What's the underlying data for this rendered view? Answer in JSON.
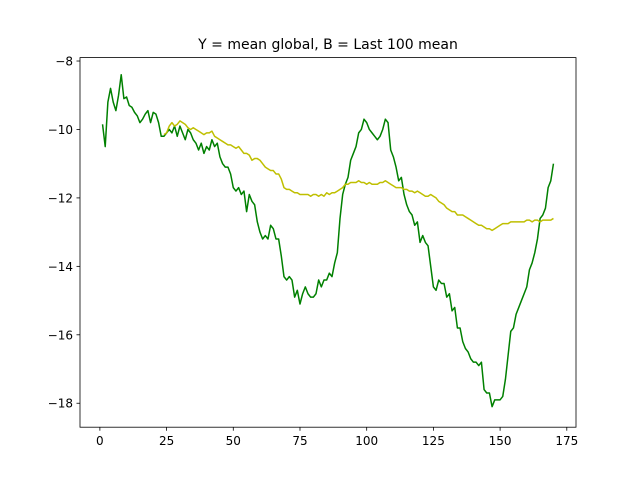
{
  "chart_data": {
    "type": "line",
    "title": "Y = mean global, B = Last 100 mean",
    "x": [
      1,
      2,
      3,
      4,
      5,
      6,
      7,
      8,
      9,
      10,
      11,
      12,
      13,
      14,
      15,
      16,
      17,
      18,
      19,
      20,
      21,
      22,
      23,
      24,
      25,
      26,
      27,
      28,
      29,
      30,
      31,
      32,
      33,
      34,
      35,
      36,
      37,
      38,
      39,
      40,
      41,
      42,
      43,
      44,
      45,
      46,
      47,
      48,
      49,
      50,
      51,
      52,
      53,
      54,
      55,
      56,
      57,
      58,
      59,
      60,
      61,
      62,
      63,
      64,
      65,
      66,
      67,
      68,
      69,
      70,
      71,
      72,
      73,
      74,
      75,
      76,
      77,
      78,
      79,
      80,
      81,
      82,
      83,
      84,
      85,
      86,
      87,
      88,
      89,
      90,
      91,
      92,
      93,
      94,
      95,
      96,
      97,
      98,
      99,
      100,
      101,
      102,
      103,
      104,
      105,
      106,
      107,
      108,
      109,
      110,
      111,
      112,
      113,
      114,
      115,
      116,
      117,
      118,
      119,
      120,
      121,
      122,
      123,
      124,
      125,
      126,
      127,
      128,
      129,
      130,
      131,
      132,
      133,
      134,
      135,
      136,
      137,
      138,
      139,
      140,
      141,
      142,
      143,
      144,
      145,
      146,
      147,
      148,
      149,
      150,
      151,
      152,
      153,
      154,
      155,
      156,
      157,
      158,
      159,
      160,
      161,
      162,
      163,
      164,
      165,
      166,
      167,
      168,
      169,
      170
    ],
    "series": [
      {
        "color": "#008000",
        "values": [
          -9.85,
          -10.5,
          -9.2,
          -8.8,
          -9.2,
          -9.45,
          -9.0,
          -8.4,
          -9.1,
          -9.05,
          -9.3,
          -9.35,
          -9.5,
          -9.6,
          -9.8,
          -9.7,
          -9.55,
          -9.45,
          -9.8,
          -9.5,
          -9.55,
          -9.8,
          -10.2,
          -10.2,
          -10.1,
          -10.0,
          -10.1,
          -9.9,
          -10.2,
          -9.9,
          -10.1,
          -10.3,
          -10.0,
          -10.1,
          -10.3,
          -10.4,
          -10.6,
          -10.4,
          -10.7,
          -10.5,
          -10.6,
          -10.3,
          -10.5,
          -10.4,
          -10.8,
          -11.0,
          -11.1,
          -11.1,
          -11.3,
          -11.7,
          -11.8,
          -11.7,
          -11.9,
          -11.8,
          -12.4,
          -11.9,
          -12.1,
          -12.2,
          -12.7,
          -13.0,
          -13.2,
          -13.1,
          -13.2,
          -12.8,
          -12.9,
          -13.2,
          -13.2,
          -13.7,
          -14.3,
          -14.4,
          -14.3,
          -14.4,
          -14.9,
          -14.7,
          -15.1,
          -14.8,
          -14.6,
          -14.8,
          -14.9,
          -14.9,
          -14.8,
          -14.4,
          -14.6,
          -14.4,
          -14.4,
          -14.2,
          -14.3,
          -13.9,
          -13.6,
          -12.6,
          -11.9,
          -11.6,
          -11.4,
          -10.9,
          -10.7,
          -10.5,
          -10.1,
          -10.0,
          -9.7,
          -9.8,
          -10.0,
          -10.1,
          -10.2,
          -10.3,
          -10.2,
          -10.0,
          -9.7,
          -9.8,
          -10.6,
          -10.8,
          -11.1,
          -11.5,
          -11.4,
          -11.9,
          -12.2,
          -12.4,
          -12.5,
          -12.8,
          -12.7,
          -13.3,
          -13.1,
          -13.3,
          -13.4,
          -14.0,
          -14.6,
          -14.7,
          -14.4,
          -14.5,
          -14.5,
          -14.9,
          -14.8,
          -15.3,
          -15.2,
          -15.8,
          -15.8,
          -16.2,
          -16.4,
          -16.5,
          -16.7,
          -16.8,
          -16.8,
          -16.9,
          -16.8,
          -17.6,
          -17.7,
          -17.7,
          -18.1,
          -17.9,
          -17.9,
          -17.9,
          -17.8,
          -17.3,
          -16.6,
          -15.9,
          -15.8,
          -15.4,
          -15.2,
          -15.0,
          -14.8,
          -14.6,
          -14.1,
          -13.9,
          -13.6,
          -13.2,
          -12.6,
          -12.5,
          -12.3,
          -11.7,
          -11.5,
          -11.0
        ]
      },
      {
        "color": "#bfbf00",
        "values": [
          null,
          null,
          null,
          null,
          null,
          null,
          null,
          null,
          null,
          null,
          null,
          null,
          null,
          null,
          null,
          null,
          null,
          null,
          null,
          null,
          null,
          null,
          null,
          -10.15,
          -10.1,
          -9.9,
          -9.8,
          -9.9,
          -9.85,
          -9.75,
          -9.8,
          -9.85,
          -9.95,
          -10.0,
          -9.95,
          -10.0,
          -10.05,
          -10.1,
          -10.15,
          -10.1,
          -10.1,
          -10.05,
          -10.2,
          -10.25,
          -10.3,
          -10.35,
          -10.4,
          -10.45,
          -10.45,
          -10.5,
          -10.55,
          -10.5,
          -10.6,
          -10.7,
          -10.7,
          -10.75,
          -10.9,
          -10.85,
          -10.85,
          -10.9,
          -11.0,
          -11.1,
          -11.15,
          -11.2,
          -11.2,
          -11.3,
          -11.3,
          -11.45,
          -11.7,
          -11.75,
          -11.75,
          -11.8,
          -11.85,
          -11.85,
          -11.9,
          -11.9,
          -11.9,
          -11.9,
          -11.95,
          -11.9,
          -11.9,
          -11.95,
          -11.9,
          -11.95,
          -11.85,
          -11.9,
          -11.85,
          -11.85,
          -11.8,
          -11.75,
          -11.7,
          -11.6,
          -11.6,
          -11.55,
          -11.55,
          -11.55,
          -11.5,
          -11.55,
          -11.55,
          -11.6,
          -11.55,
          -11.6,
          -11.6,
          -11.6,
          -11.55,
          -11.55,
          -11.5,
          -11.55,
          -11.6,
          -11.65,
          -11.7,
          -11.7,
          -11.7,
          -11.75,
          -11.75,
          -11.8,
          -11.8,
          -11.85,
          -11.8,
          -11.85,
          -11.9,
          -11.95,
          -11.95,
          -11.9,
          -11.95,
          -12.0,
          -12.1,
          -12.15,
          -12.2,
          -12.3,
          -12.35,
          -12.4,
          -12.4,
          -12.5,
          -12.5,
          -12.5,
          -12.55,
          -12.6,
          -12.65,
          -12.7,
          -12.75,
          -12.8,
          -12.8,
          -12.85,
          -12.9,
          -12.9,
          -12.95,
          -12.9,
          -12.85,
          -12.8,
          -12.75,
          -12.75,
          -12.75,
          -12.7,
          -12.7,
          -12.7,
          -12.7,
          -12.7,
          -12.7,
          -12.65,
          -12.65,
          -12.7,
          -12.65,
          -12.65,
          -12.7,
          -12.65,
          -12.65,
          -12.65,
          -12.65,
          -12.6
        ]
      }
    ],
    "xlim": [
      -7.45,
      178.45
    ],
    "ylim": [
      -18.7,
      -7.9
    ],
    "xticks": [
      0,
      25,
      50,
      75,
      100,
      125,
      150,
      175
    ],
    "yticks": [
      {
        "value": -18,
        "label": "−18"
      },
      {
        "value": -16,
        "label": "−16"
      },
      {
        "value": -14,
        "label": "−14"
      },
      {
        "value": -12,
        "label": "−12"
      },
      {
        "value": -10,
        "label": "−10"
      },
      {
        "value": -8,
        "label": "−8"
      }
    ]
  }
}
